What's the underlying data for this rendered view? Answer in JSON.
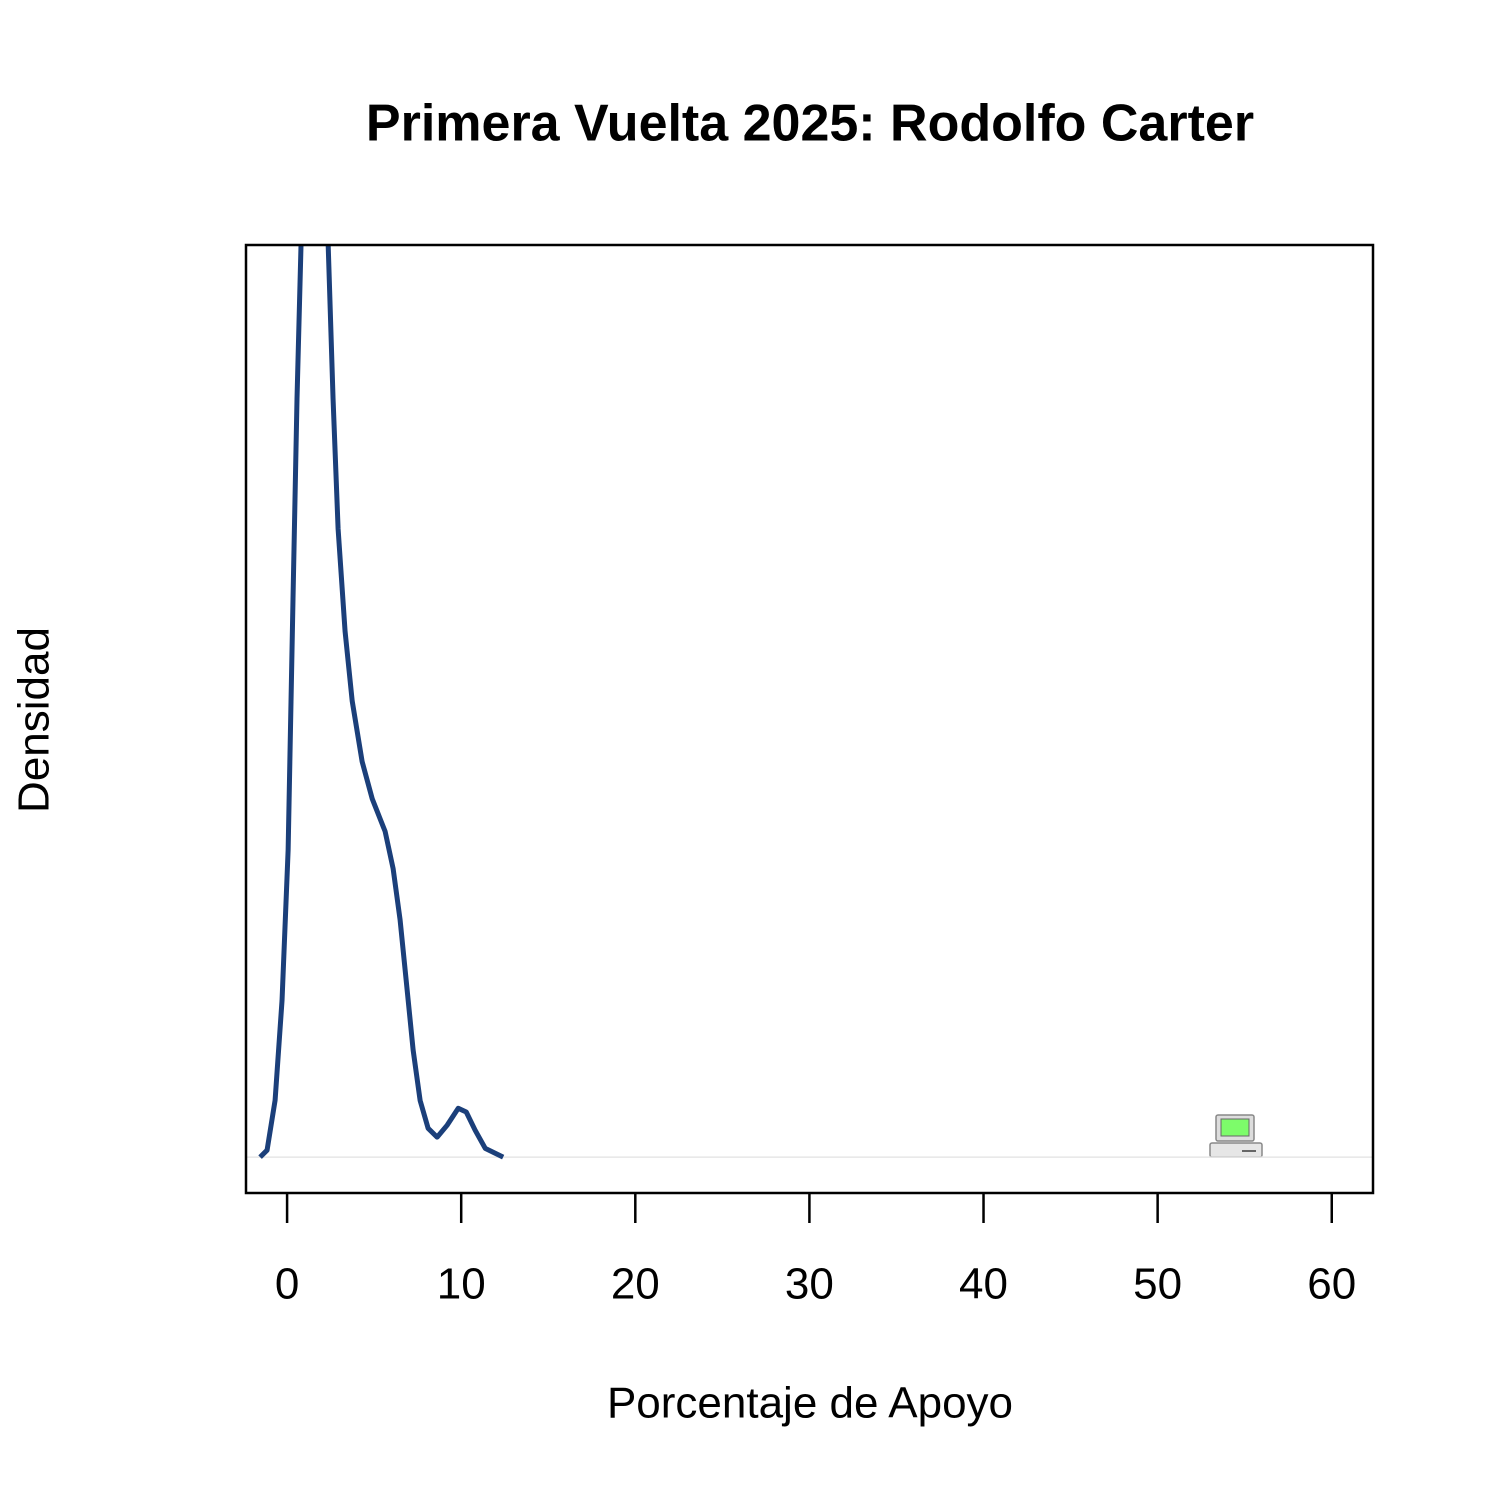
{
  "chart_data": {
    "type": "density",
    "title": "Primera Vuelta 2025: Rodolfo Carter",
    "x_label": "Porcentaje de Apoyo",
    "y_label": "Densidad",
    "color": "#1b3f7a",
    "xlim": [
      -2.36,
      62.37
    ],
    "ylim": [
      -0.0077,
      0.196
    ],
    "xticks": [
      0,
      10,
      20,
      30,
      40,
      50,
      60
    ],
    "x": [
      -1.55,
      -1.15,
      -0.69,
      -0.29,
      0.06,
      0.34,
      0.57,
      0.8,
      1.2,
      1.7,
      2.2,
      2.36,
      2.64,
      2.93,
      3.33,
      3.74,
      4.31,
      4.89,
      5.63,
      6.09,
      6.49,
      6.84,
      7.24,
      7.64,
      8.1,
      8.62,
      9.2,
      9.83,
      10.29,
      10.8,
      11.38,
      12.41
    ],
    "values": [
      0,
      0.0015,
      0.0122,
      0.0337,
      0.066,
      0.12,
      0.163,
      0.196,
      0.22,
      0.235,
      0.225,
      0.196,
      0.163,
      0.135,
      0.113,
      0.098,
      0.085,
      0.077,
      0.07,
      0.062,
      0.051,
      0.038,
      0.023,
      0.0122,
      0.0062,
      0.0043,
      0.0069,
      0.0105,
      0.0097,
      0.0058,
      0.0019,
      0
    ]
  }
}
